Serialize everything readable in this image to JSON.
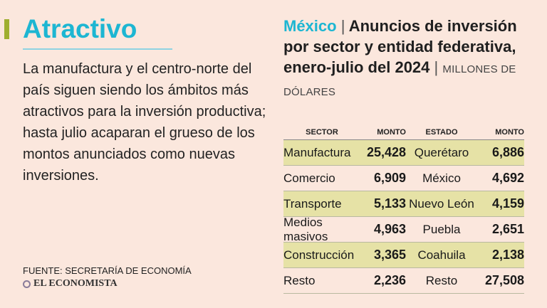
{
  "left_panel": {
    "headline": "Atractivo",
    "body": "La manufactura y el centro-norte del país siguen siendo los ámbitos más atractivos para la inversión productiva; hasta julio acaparan el grueso de los montos anunciados como nuevas inversiones.",
    "source": "FUENTE: SECRETARÍA DE ECONOMÍA",
    "brand": "EL ECONOMISTA"
  },
  "colors": {
    "accent": "#1db6d2",
    "bar": "#9fae2f",
    "row_highlight": "#e6e2a6",
    "background": "#fbe7dd"
  },
  "chart_data": {
    "type": "table",
    "title": {
      "country": "México",
      "separator": "|",
      "main": "Anuncios de inversión por sector y entidad federativa, enero-julio del 2024",
      "unit": "MILLONES DE DÓLARES"
    },
    "columns": [
      "SECTOR",
      "MONTO",
      "ESTADO",
      "MONTO"
    ],
    "rows": [
      {
        "sector": "Manufactura",
        "sector_amount": "25,428",
        "state": "Querétaro",
        "state_amount": "6,886"
      },
      {
        "sector": "Comercio",
        "sector_amount": "6,909",
        "state": "México",
        "state_amount": "4,692"
      },
      {
        "sector": "Transporte",
        "sector_amount": "5,133",
        "state": "Nuevo León",
        "state_amount": "4,159"
      },
      {
        "sector": "Medios masivos",
        "sector_amount": "4,963",
        "state": "Puebla",
        "state_amount": "2,651"
      },
      {
        "sector": "Construcción",
        "sector_amount": "3,365",
        "state": "Coahuila",
        "state_amount": "2,138"
      },
      {
        "sector": "Resto",
        "sector_amount": "2,236",
        "state": "Resto",
        "state_amount": "27,508"
      }
    ]
  }
}
